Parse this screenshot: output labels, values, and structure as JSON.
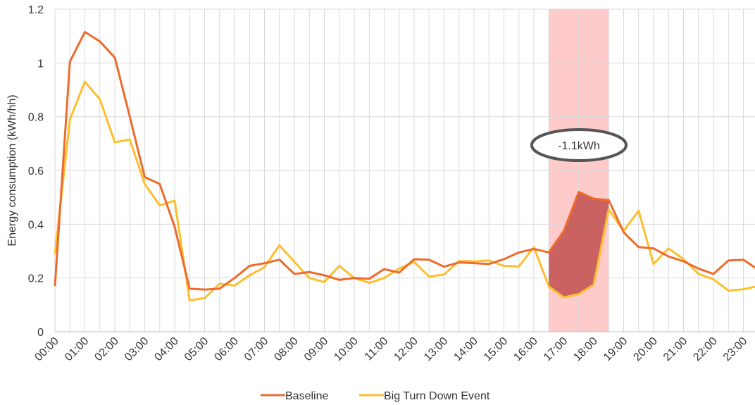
{
  "chart_data": {
    "type": "line",
    "y_label": "Energy consumption (kWh/hh)",
    "annotation": "-1.1kWh",
    "categories": [
      "00:00",
      null,
      "01:00",
      null,
      "02:00",
      null,
      "03:00",
      null,
      "04:00",
      null,
      "05:00",
      null,
      "06:00",
      null,
      "07:00",
      null,
      "08:00",
      null,
      "09:00",
      null,
      "10:00",
      null,
      "11:00",
      null,
      "12:00",
      null,
      "13:00",
      null,
      "14:00",
      null,
      "15:00",
      null,
      "16:00",
      null,
      "17:00",
      null,
      "18:00",
      null,
      "19:00",
      null,
      "20:00",
      null,
      "21:00",
      null,
      "22:00",
      null,
      "23:00",
      null
    ],
    "series": [
      {
        "name": "Baseline",
        "color": "#ed6b2c",
        "values": [
          0.17,
          1.005,
          1.115,
          1.08,
          1.02,
          0.8,
          0.575,
          0.55,
          0.39,
          0.16,
          0.157,
          0.16,
          0.2,
          0.245,
          0.255,
          0.268,
          0.215,
          0.222,
          0.21,
          0.193,
          0.2,
          0.197,
          0.233,
          0.22,
          0.27,
          0.268,
          0.242,
          0.258,
          0.255,
          0.252,
          0.27,
          0.295,
          0.308,
          0.295,
          0.375,
          0.52,
          0.495,
          0.49,
          0.37,
          0.315,
          0.31,
          0.28,
          0.262,
          0.235,
          0.215,
          0.265,
          0.268,
          0.23
        ]
      },
      {
        "name": "Big Turn Down Event",
        "color": "#fdbf2d",
        "values": [
          0.29,
          0.79,
          0.93,
          0.865,
          0.705,
          0.715,
          0.55,
          0.47,
          0.488,
          0.117,
          0.125,
          0.178,
          0.172,
          0.21,
          0.24,
          0.322,
          0.26,
          0.2,
          0.185,
          0.245,
          0.2,
          0.182,
          0.2,
          0.235,
          0.26,
          0.205,
          0.213,
          0.263,
          0.262,
          0.265,
          0.245,
          0.243,
          0.315,
          0.168,
          0.128,
          0.14,
          0.175,
          0.455,
          0.375,
          0.45,
          0.252,
          0.31,
          0.27,
          0.215,
          0.195,
          0.153,
          0.158,
          0.17
        ]
      }
    ],
    "ylim": [
      0,
      1.2
    ],
    "yticks": [
      0,
      0.2,
      0.4,
      0.6,
      0.8,
      1,
      1.2
    ],
    "grid": true
  }
}
